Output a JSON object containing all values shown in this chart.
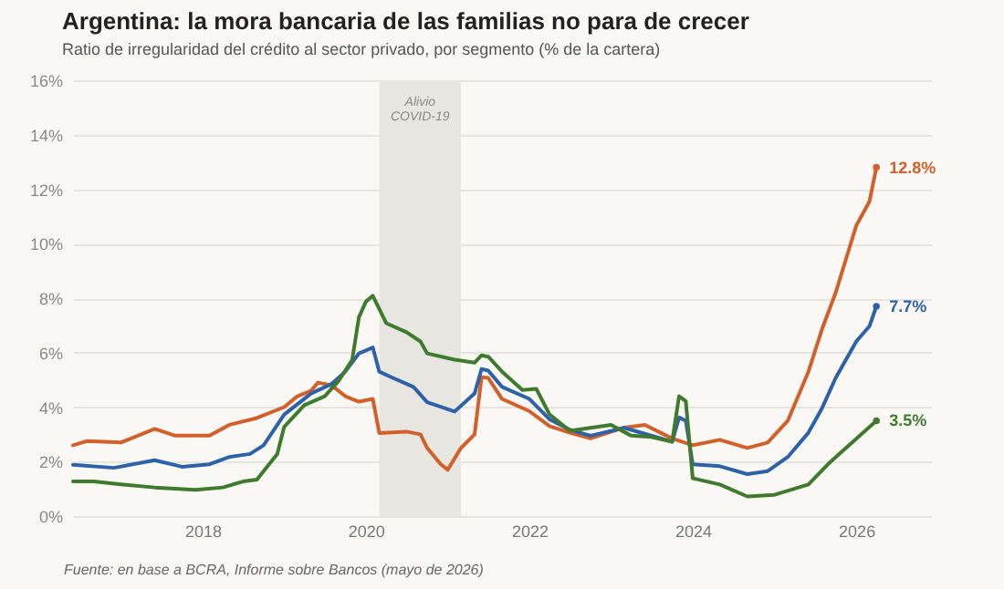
{
  "chart_data": {
    "type": "line",
    "title": "Argentina: la mora bancaria de las familias no para de crecer",
    "subtitle": "Ratio de irregularidad del crédito al sector privado, por segmento (% de la cartera)",
    "xlim": [
      "2016-06",
      "2026-12"
    ],
    "xticks": [
      "2018",
      "2020",
      "2022",
      "2024",
      "2026"
    ],
    "ylim": [
      0,
      16
    ],
    "yticks": [
      {
        "value": 0,
        "label": "0%"
      },
      {
        "value": 2,
        "label": "2%"
      },
      {
        "value": 4,
        "label": "4%"
      },
      {
        "value": 6,
        "label": "6%"
      },
      {
        "value": 8,
        "label": "8%"
      },
      {
        "value": 10,
        "label": "10%"
      },
      {
        "value": 12,
        "label": "12%"
      },
      {
        "value": 14,
        "label": "14%"
      },
      {
        "value": 16,
        "label": "16%"
      }
    ],
    "grid": "y",
    "series": [
      {
        "color": "#d35f2a",
        "x": [
          "2016-06",
          "2016-08",
          "2017-01",
          "2017-06",
          "2017-09",
          "2018-02",
          "2018-05",
          "2018-09",
          "2019-01",
          "2019-03",
          "2019-05",
          "2019-06",
          "2019-08",
          "2019-10",
          "2019-12",
          "2020-02",
          "2020-03",
          "2020-07",
          "2020-09",
          "2020-10",
          "2020-12",
          "2021-01",
          "2021-03",
          "2021-05",
          "2021-06",
          "2021-07",
          "2021-09",
          "2022-01",
          "2022-04",
          "2022-07",
          "2022-10",
          "2023-03",
          "2023-06",
          "2023-10",
          "2024-01",
          "2024-05",
          "2024-09",
          "2024-12",
          "2025-03",
          "2025-06",
          "2025-08",
          "2025-10",
          "2026-01",
          "2026-03",
          "2026-04"
        ],
        "values": [
          2.6,
          2.75,
          2.7,
          3.2,
          2.95,
          2.95,
          3.35,
          3.6,
          4.0,
          4.4,
          4.6,
          4.9,
          4.8,
          4.4,
          4.2,
          4.3,
          3.05,
          3.1,
          3.0,
          2.5,
          1.9,
          1.7,
          2.5,
          3.0,
          5.1,
          5.07,
          4.3,
          3.85,
          3.3,
          3.06,
          2.85,
          3.25,
          3.35,
          2.85,
          2.6,
          2.8,
          2.5,
          2.7,
          3.5,
          5.3,
          6.86,
          8.2,
          10.66,
          11.55,
          12.8
        ]
      },
      {
        "color": "#2e62a8",
        "x": [
          "2016-06",
          "2016-12",
          "2017-06",
          "2017-10",
          "2018-02",
          "2018-05",
          "2018-08",
          "2018-10",
          "2019-01",
          "2019-05",
          "2019-08",
          "2019-10",
          "2019-12",
          "2020-02",
          "2020-03",
          "2020-05",
          "2020-08",
          "2020-10",
          "2021-02",
          "2021-05",
          "2021-06",
          "2021-07",
          "2021-09",
          "2022-01",
          "2022-04",
          "2022-07",
          "2022-10",
          "2023-03",
          "2023-06",
          "2023-10",
          "2023-11",
          "2023-12",
          "2024-01",
          "2024-05",
          "2024-09",
          "2024-12",
          "2025-03",
          "2025-06",
          "2025-08",
          "2025-10",
          "2026-01",
          "2026-03",
          "2026-04"
        ],
        "values": [
          1.88,
          1.77,
          2.05,
          1.81,
          1.9,
          2.17,
          2.28,
          2.6,
          3.73,
          4.5,
          4.85,
          5.3,
          5.97,
          6.19,
          5.3,
          5.07,
          4.74,
          4.18,
          3.84,
          4.5,
          5.4,
          5.34,
          4.74,
          4.3,
          3.55,
          3.17,
          2.95,
          3.24,
          3.02,
          2.73,
          3.62,
          3.5,
          1.9,
          1.83,
          1.54,
          1.65,
          2.17,
          3.06,
          3.96,
          5.07,
          6.41,
          6.97,
          7.7
        ]
      },
      {
        "color": "#3f7a2e",
        "x": [
          "2016-06",
          "2016-09",
          "2017-01",
          "2017-06",
          "2017-12",
          "2018-04",
          "2018-07",
          "2018-09",
          "2018-12",
          "2019-01",
          "2019-04",
          "2019-07",
          "2019-09",
          "2019-11",
          "2019-12",
          "2020-01",
          "2020-02",
          "2020-04",
          "2020-07",
          "2020-09",
          "2020-10",
          "2021-02",
          "2021-05",
          "2021-06",
          "2021-07",
          "2021-09",
          "2021-12",
          "2022-02",
          "2022-04",
          "2022-07",
          "2022-10",
          "2023-01",
          "2023-04",
          "2023-07",
          "2023-10",
          "2023-11",
          "2023-12",
          "2024-01",
          "2024-05",
          "2024-09",
          "2025-01",
          "2025-06",
          "2025-09",
          "2026-01",
          "2026-04"
        ],
        "values": [
          1.27,
          1.27,
          1.16,
          1.05,
          0.96,
          1.05,
          1.27,
          1.34,
          2.28,
          3.28,
          4.07,
          4.4,
          4.96,
          5.74,
          7.3,
          7.87,
          8.09,
          7.08,
          6.75,
          6.41,
          5.97,
          5.74,
          5.63,
          5.9,
          5.85,
          5.3,
          4.63,
          4.67,
          3.73,
          3.13,
          3.24,
          3.35,
          2.95,
          2.9,
          2.73,
          4.4,
          4.22,
          1.39,
          1.16,
          0.72,
          0.78,
          1.16,
          1.94,
          2.84,
          3.5
        ]
      }
    ],
    "bands": [
      {
        "axis": "x",
        "from": "2020-03",
        "to": "2021-03",
        "label": "Alivio COVID-19",
        "color": "#e8e6e1"
      }
    ],
    "annotations": [
      {
        "text": "12.8%",
        "x": "2026-04",
        "y": 12.8
      },
      {
        "text": "7.7%",
        "x": "2026-04",
        "y": 7.7
      },
      {
        "text": "3.5%",
        "x": "2026-04",
        "y": 3.5
      },
      "Fuente: en base a BCRA, Informe sobre Bancos (mayo de 2026)"
    ]
  }
}
